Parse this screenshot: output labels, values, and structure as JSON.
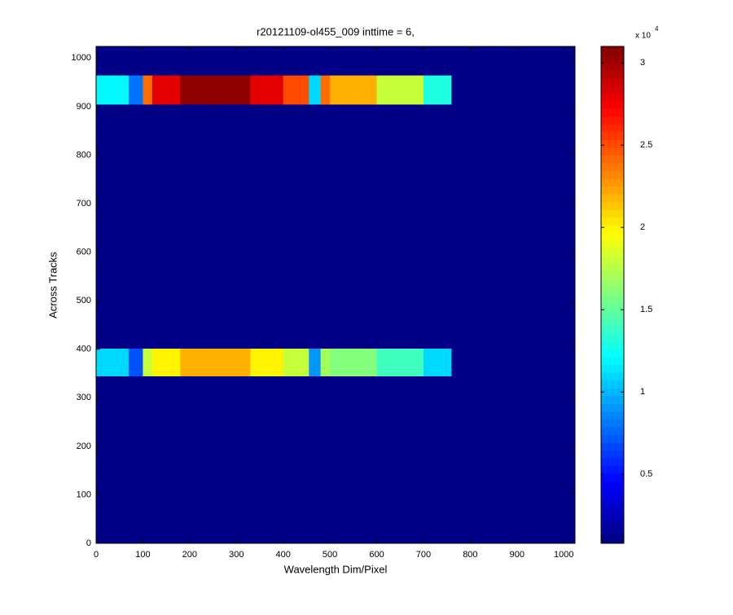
{
  "chart_data": {
    "type": "heatmap",
    "title": "r20121109-ol455_009 inttime = 6,",
    "xlabel": "Wavelength Dim/Pixel",
    "ylabel": "Across Tracks",
    "xlim": [
      0,
      1024
    ],
    "ylim": [
      0,
      1024
    ],
    "xticks": [
      0,
      100,
      200,
      300,
      400,
      500,
      600,
      700,
      800,
      900,
      1000
    ],
    "yticks": [
      0,
      100,
      200,
      300,
      400,
      500,
      600,
      700,
      800,
      900,
      1000
    ],
    "x": [
      0,
      70,
      100,
      120,
      180,
      250,
      330,
      400,
      455,
      480,
      500,
      600,
      700,
      760,
      1024
    ],
    "y": [
      0,
      345,
      402,
      905,
      965,
      1024
    ],
    "values": [
      [
        1000,
        1000,
        1000,
        1000,
        1000,
        1000,
        1000,
        1000,
        1000,
        1000,
        1000,
        1000,
        1000,
        1000
      ],
      [
        11000,
        7000,
        18000,
        20000,
        22000,
        22000,
        20000,
        18000,
        9000,
        17000,
        16000,
        14000,
        11000,
        1000
      ],
      [
        1000,
        1000,
        1000,
        1000,
        1000,
        1000,
        1000,
        1000,
        1000,
        1000,
        1000,
        1000,
        1000,
        1000
      ],
      [
        12000,
        8000,
        24000,
        28000,
        30500,
        30500,
        28000,
        25000,
        11000,
        24000,
        22000,
        18000,
        13000,
        1000
      ],
      [
        1000,
        1000,
        1000,
        1000,
        1000,
        1000,
        1000,
        1000,
        1000,
        1000,
        1000,
        1000,
        1000,
        1000
      ]
    ],
    "colormap": "jet",
    "clim": [
      800,
      31000
    ],
    "cticks": [
      {
        "value": 5000,
        "label": "0.5"
      },
      {
        "value": 10000,
        "label": "1"
      },
      {
        "value": 15000,
        "label": "1.5"
      },
      {
        "value": 20000,
        "label": "2"
      },
      {
        "value": 25000,
        "label": "2.5"
      },
      {
        "value": 30000,
        "label": "3"
      }
    ],
    "colorbar_scale": "x 10",
    "colorbar_exponent": "4"
  }
}
